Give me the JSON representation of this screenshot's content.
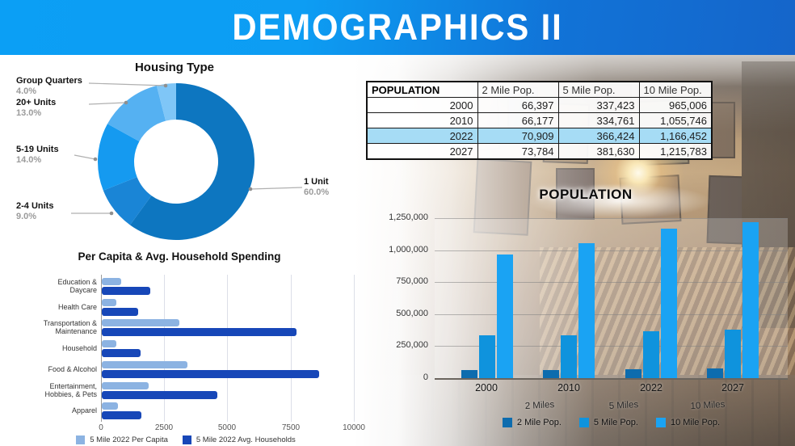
{
  "banner": {
    "title": "DEMOGRAPHICS II",
    "color_left": "#0b9ff5",
    "color_right": "#1565ca"
  },
  "chart_data": [
    {
      "id": "housing_type",
      "type": "pie",
      "donut": true,
      "title": "Housing Type",
      "labels": [
        "1 Unit",
        "2-4 Units",
        "5-19 Units",
        "20+ Units",
        "Group Quarters"
      ],
      "values": [
        60.0,
        9.0,
        14.0,
        13.0,
        4.0
      ],
      "value_labels": [
        "60.0%",
        "9.0%",
        "14.0%",
        "13.0%",
        "4.0%"
      ],
      "colors": [
        "#0d76c0",
        "#1a85d6",
        "#159af0",
        "#55b1f2",
        "#7fc6f7"
      ],
      "start_angle_deg": 0,
      "direction": "clockwise",
      "legend_position": "callout-labels"
    },
    {
      "id": "population_table",
      "type": "table",
      "title": "POPULATION",
      "columns": [
        "POPULATION",
        "2 Mile Pop.",
        "5 Mile Pop.",
        "10 Mile Pop."
      ],
      "rows": [
        [
          "2000",
          "66,397",
          "337,423",
          "965,006"
        ],
        [
          "2010",
          "66,177",
          "334,761",
          "1,055,746"
        ],
        [
          "2022",
          "70,909",
          "366,424",
          "1,166,452"
        ],
        [
          "2027",
          "73,784",
          "381,630",
          "1,215,783"
        ]
      ],
      "highlighted_row": "2022",
      "highlight_color": "#a6dcf5"
    },
    {
      "id": "population_bars",
      "type": "bar",
      "title": "POPULATION",
      "categories": [
        "2000",
        "2010",
        "2022",
        "2027"
      ],
      "series": [
        {
          "name": "2 Mile Pop.",
          "color": "#0d6cae",
          "values": [
            66397,
            66177,
            70909,
            73784
          ]
        },
        {
          "name": "5 Mile Pop.",
          "color": "#0f93dd",
          "values": [
            337423,
            334761,
            366424,
            381630
          ]
        },
        {
          "name": "10 Mile Pop.",
          "color": "#1aa3f3",
          "values": [
            965006,
            1055746,
            1166452,
            1215783
          ]
        }
      ],
      "ylim": [
        0,
        1250000
      ],
      "ytick_labels": [
        "1,250,000",
        "1,000,000",
        "750,000",
        "500,000",
        "250,000",
        "0"
      ],
      "x_sub_labels": [
        "2 Miles",
        "5 Miles",
        "10 Miles"
      ],
      "grid": true,
      "legend_position": "bottom"
    },
    {
      "id": "spending_bars",
      "type": "bar",
      "orientation": "horizontal",
      "title": "Per Capita & Avg. Household Spending",
      "categories": [
        "Education & Daycare",
        "Health Care",
        "Transportation & Maintenance",
        "Household",
        "Food & Alcohol",
        "Entertainment, Hobbies, & Pets",
        "Apparel"
      ],
      "categories_lines": [
        [
          "Education &",
          "Daycare"
        ],
        [
          "Health Care"
        ],
        [
          "Transportation &",
          "Maintenance"
        ],
        [
          "Household"
        ],
        [
          "Food & Alcohol"
        ],
        [
          "Entertainment,",
          "Hobbies, & Pets"
        ],
        [
          "Apparel"
        ]
      ],
      "series": [
        {
          "name": "5 Mile 2022 Per Capita",
          "color": "#8cb3e2",
          "values": [
            750,
            560,
            3050,
            580,
            3400,
            1840,
            630
          ]
        },
        {
          "name": "5 Mile 2022 Avg. Households",
          "color": "#1747b8",
          "values": [
            1900,
            1450,
            7700,
            1520,
            8600,
            4580,
            1570
          ]
        }
      ],
      "xlim": [
        0,
        10000
      ],
      "xtick_labels": [
        "0",
        "2500",
        "5000",
        "7500",
        "10000"
      ],
      "grid": true,
      "legend_position": "bottom"
    }
  ]
}
